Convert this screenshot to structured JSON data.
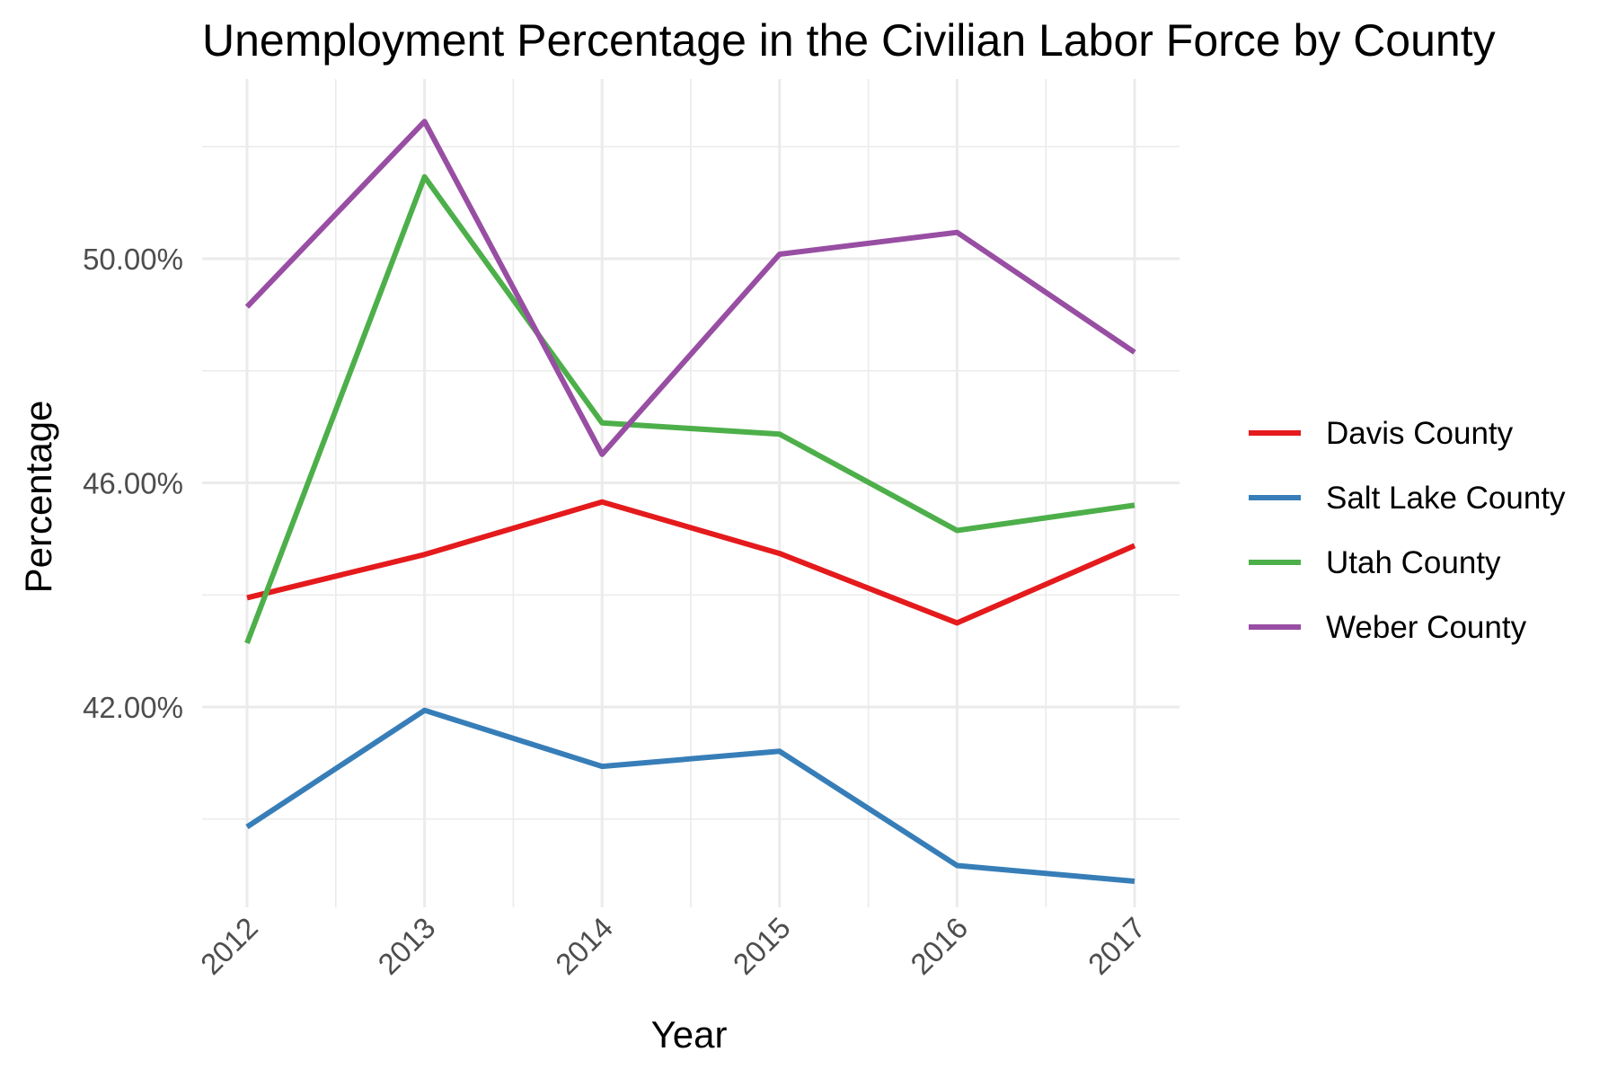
{
  "chart_data": {
    "type": "line",
    "title": "Unemployment Percentage in the Civilian Labor Force by County",
    "xlabel": "Year",
    "ylabel": "Percentage",
    "x": [
      2012,
      2013,
      2014,
      2015,
      2016,
      2017
    ],
    "x_tick_labels": [
      "2012",
      "2013",
      "2014",
      "2015",
      "2016",
      "2017"
    ],
    "y_ticks": [
      42,
      46,
      50
    ],
    "y_tick_labels": [
      "42.00%",
      "46.00%",
      "50.00%"
    ],
    "ylim": [
      38.5,
      53.2
    ],
    "grid": true,
    "legend_position": "right",
    "series": [
      {
        "name": "Davis County",
        "color": "#E41A1C",
        "values": [
          43.95,
          44.72,
          45.66,
          44.74,
          43.5,
          44.88
        ]
      },
      {
        "name": "Salt Lake County",
        "color": "#377EB8",
        "values": [
          39.86,
          41.94,
          40.94,
          41.21,
          39.17,
          38.89
        ]
      },
      {
        "name": "Utah County",
        "color": "#4DAF4A",
        "values": [
          43.14,
          51.46,
          47.07,
          46.87,
          45.15,
          45.6
        ]
      },
      {
        "name": "Weber County",
        "color": "#984EA3",
        "values": [
          49.14,
          52.45,
          46.51,
          50.08,
          50.47,
          48.33
        ]
      }
    ]
  }
}
